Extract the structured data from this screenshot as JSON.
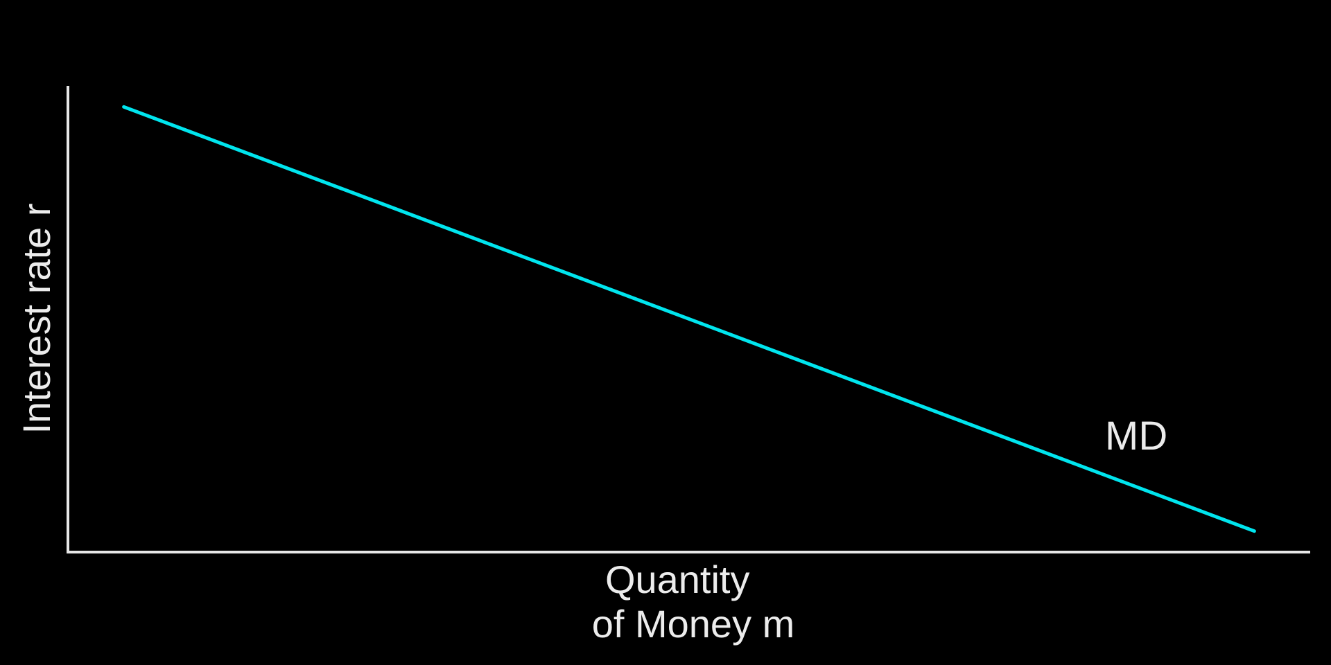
{
  "chart_data": {
    "type": "line",
    "title": "",
    "xlabel": "Quantity of Money m",
    "xlabel_lines": [
      "Quantity",
      "of Money m"
    ],
    "ylabel": "Interest rate r",
    "grid": false,
    "ticks": false,
    "xlim": [
      0,
      100
    ],
    "ylim": [
      0,
      100
    ],
    "series": [
      {
        "name": "MD",
        "color": "#00e5ee",
        "x": [
          4.5,
          95.5
        ],
        "y": [
          95.5,
          4.5
        ]
      }
    ],
    "annotations": [
      {
        "text": "MD",
        "x": 86,
        "y": 22
      }
    ],
    "colors": {
      "background": "#000000",
      "axis": "#e6e6e6",
      "text": "#ececec"
    }
  }
}
